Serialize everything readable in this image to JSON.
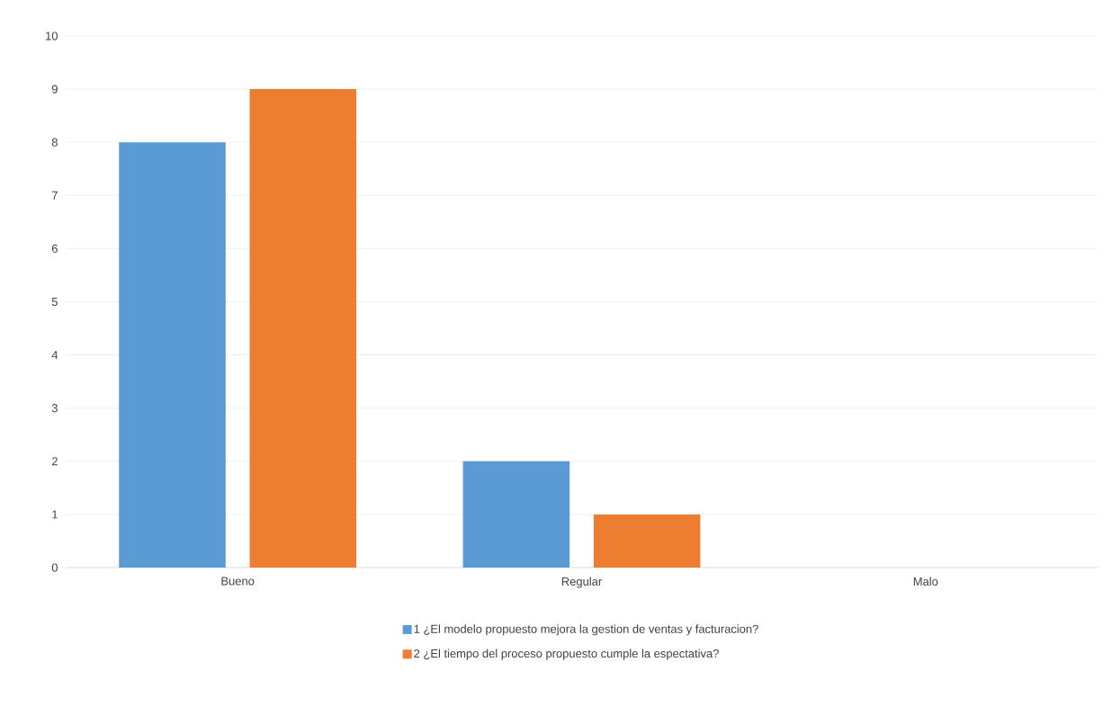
{
  "chart_data": {
    "type": "bar",
    "categories": [
      "Bueno",
      "Regular",
      "Malo"
    ],
    "series": [
      {
        "name": "1 ¿El modelo propuesto mejora la gestion de ventas y facturacion?",
        "color": "#5b9bd5",
        "values": [
          8,
          2,
          0
        ]
      },
      {
        "name": "2 ¿El tiempo del proceso propuesto cumple la espectativa?",
        "color": "#ed7d31",
        "values": [
          9,
          1,
          0
        ]
      }
    ],
    "ylim": [
      0,
      10
    ],
    "yticks": [
      0,
      1,
      2,
      3,
      4,
      5,
      6,
      7,
      8,
      9,
      10
    ],
    "grid": "y",
    "legend": "bottom"
  }
}
